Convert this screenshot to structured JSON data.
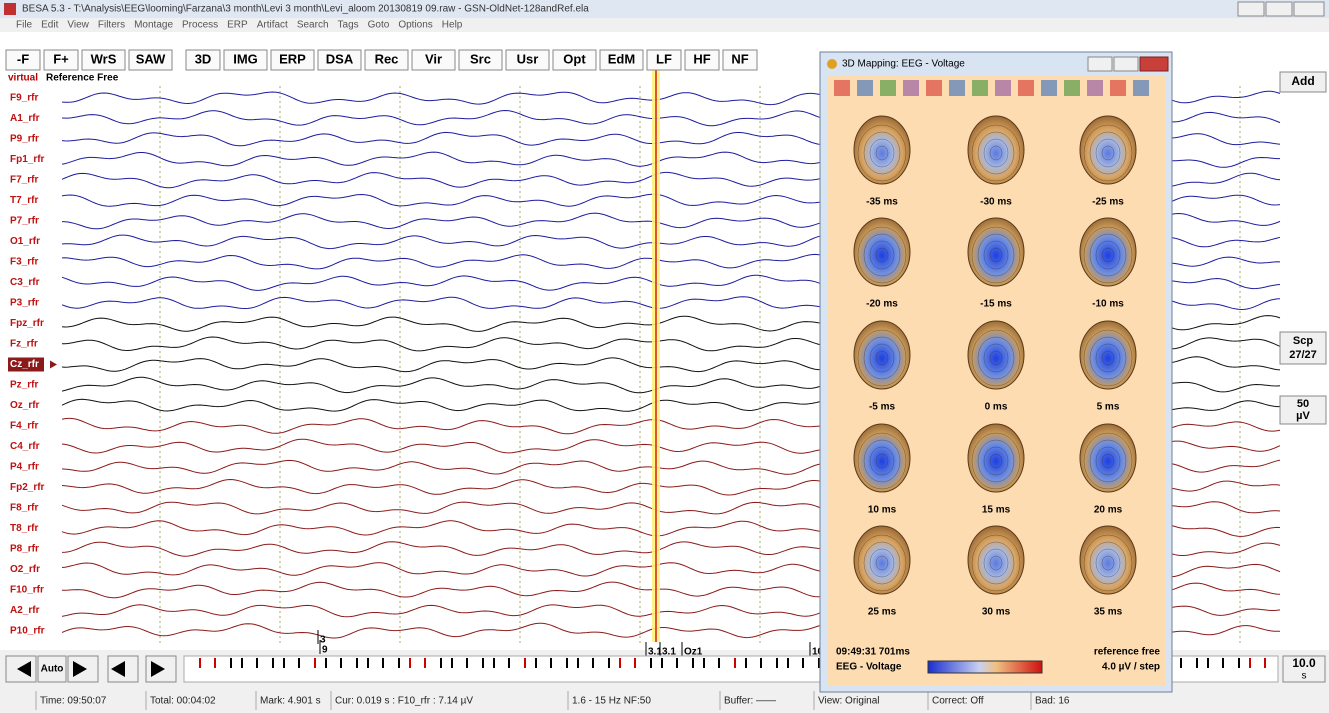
{
  "window_title": "BESA 5.3 - T:\\Analysis\\EEG\\looming\\Farzana\\3 month\\Levi 3 month\\Levi_aloom 20130819 09.raw - GSN-OldNet-128andRef.ela",
  "menu": [
    "File",
    "Edit",
    "View",
    "Filters",
    "Montage",
    "Process",
    "ERP",
    "Artifact",
    "Search",
    "Tags",
    "Goto",
    "Options",
    "Help"
  ],
  "toolbar": [
    "-F",
    "F+",
    "WrS",
    "SAW",
    "3D",
    "IMG",
    "ERP",
    "DSA",
    "Rec",
    "Vir",
    "Src",
    "Usr",
    "Opt",
    "EdM",
    "LF",
    "HF",
    "NF"
  ],
  "montage": {
    "prefix": "virtual",
    "name": "Reference Free"
  },
  "channels": [
    "F9_rfr",
    "A1_rfr",
    "P9_rfr",
    "Fp1_rfr",
    "F7_rfr",
    "T7_rfr",
    "P7_rfr",
    "O1_rfr",
    "F3_rfr",
    "C3_rfr",
    "P3_rfr",
    "Fpz_rfr",
    "Fz_rfr",
    "Cz_rfr",
    "Pz_rfr",
    "Oz_rfr",
    "F4_rfr",
    "C4_rfr",
    "P4_rfr",
    "Fp2_rfr",
    "F8_rfr",
    "T8_rfr",
    "P8_rfr",
    "O2_rfr",
    "F10_rfr",
    "A2_rfr",
    "P10_rfr"
  ],
  "markers": [
    "3",
    "9",
    "3.1",
    "3.1",
    "Oz1",
    "10"
  ],
  "nav": {
    "auto": "Auto",
    "timebase": "10.0",
    "timebase_unit": "s"
  },
  "side": {
    "add": "Add",
    "scale_top": "Scp",
    "scale_bottom": "27/27",
    "amp": "50",
    "amp_unit": "µV"
  },
  "mapping": {
    "title": "3D Mapping: EEG - Voltage",
    "maps": [
      "-35 ms",
      "-30 ms",
      "-25 ms",
      "-20 ms",
      "-15 ms",
      "-10 ms",
      "-5 ms",
      "0 ms",
      "5 ms",
      "10 ms",
      "15 ms",
      "20 ms",
      "25 ms",
      "30 ms",
      "35 ms"
    ],
    "time": "09:49:31 701ms",
    "reference": "reference free",
    "mode": "EEG - Voltage",
    "step": "4.0 µV / step"
  },
  "status": [
    "Time: 09:50:07",
    "Total: 00:04:02",
    "Mark: 4.901 s",
    "Cur: 0.019 s : F10_rfr : 7.14 µV",
    "1.6 - 15 Hz NF:50",
    "Buffer: ——",
    "View: Original",
    "Correct: Off",
    "Bad: 16"
  ]
}
